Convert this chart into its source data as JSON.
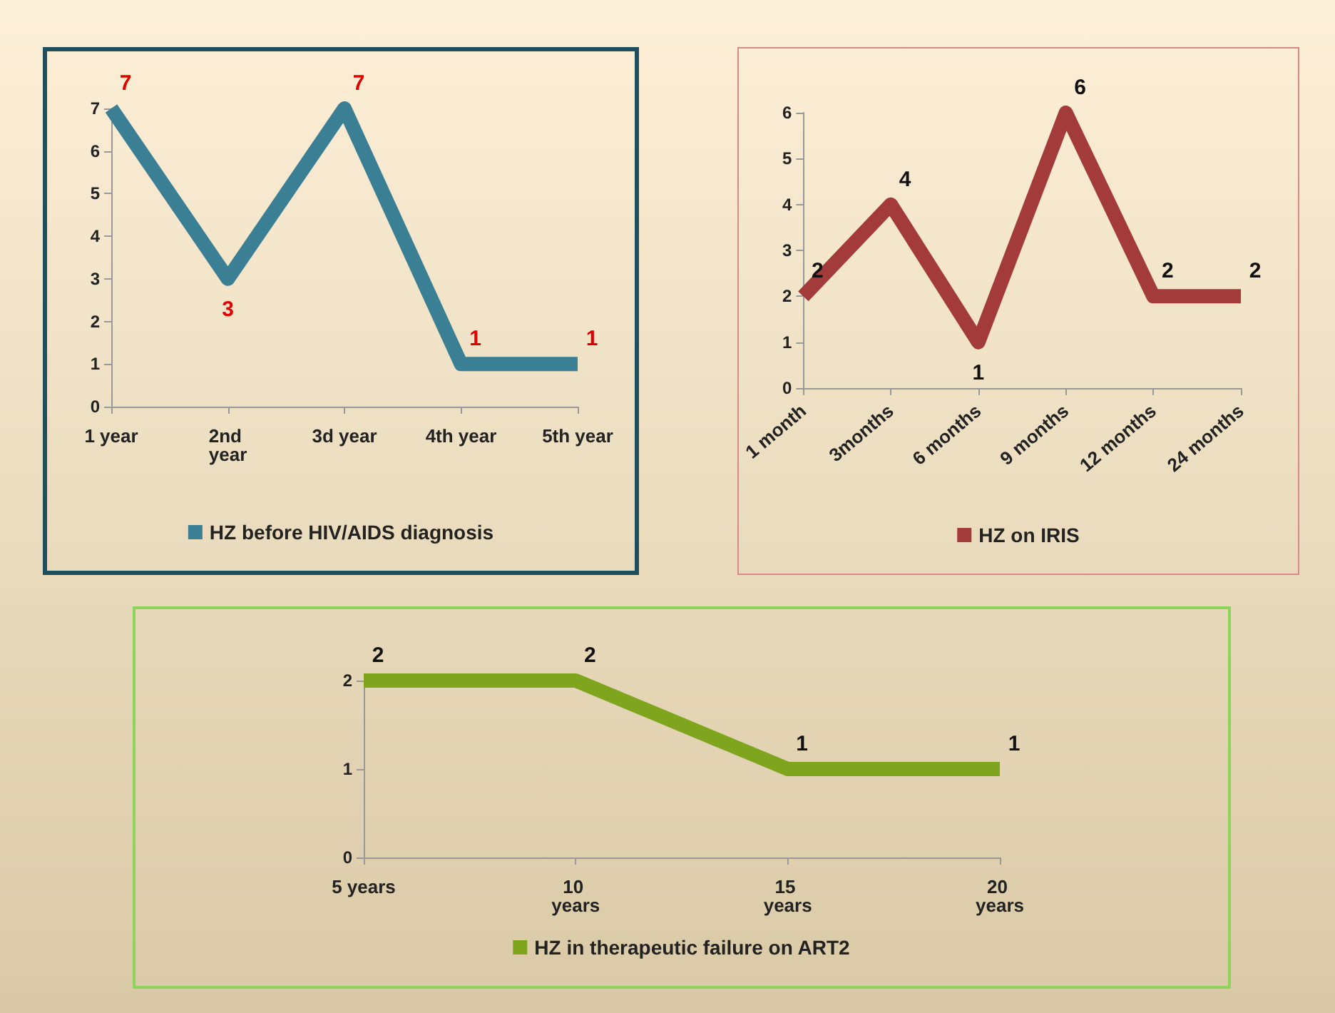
{
  "chart_data": [
    {
      "type": "line",
      "categories": [
        "1 year",
        "2nd year",
        "3d year",
        "4th year",
        "5th year"
      ],
      "series": [
        {
          "name": "HZ before HIV/AIDS diagnosis",
          "color": "#3a7f94",
          "values": [
            7,
            3,
            7,
            1,
            1
          ]
        }
      ],
      "ylim": [
        0,
        7
      ],
      "yticks": [
        0,
        1,
        2,
        3,
        4,
        5,
        6,
        7
      ],
      "data_labels": true,
      "legend": "bottom",
      "grid": false,
      "marker": "none"
    },
    {
      "type": "line",
      "categories": [
        "1 month",
        "3months",
        "6 months",
        "9 months",
        "12 months",
        "24 months"
      ],
      "series": [
        {
          "name": "HZ on IRIS",
          "color": "#a33b3b",
          "values": [
            2,
            4,
            1,
            6,
            2,
            2
          ]
        }
      ],
      "ylim": [
        0,
        6
      ],
      "yticks": [
        0,
        1,
        2,
        3,
        4,
        5,
        6
      ],
      "data_labels": true,
      "legend": "bottom",
      "grid": false,
      "marker": "none"
    },
    {
      "type": "line",
      "categories": [
        "5 years",
        "10 years",
        "15 years",
        "20 years"
      ],
      "series": [
        {
          "name": "HZ in therapeutic failure on ART2",
          "color": "#7fa51e",
          "values": [
            2,
            2,
            1,
            1
          ]
        }
      ],
      "ylim": [
        0,
        2
      ],
      "yticks": [
        0,
        1,
        2
      ],
      "data_labels": true,
      "legend": "bottom",
      "grid": false,
      "marker": "none"
    }
  ]
}
